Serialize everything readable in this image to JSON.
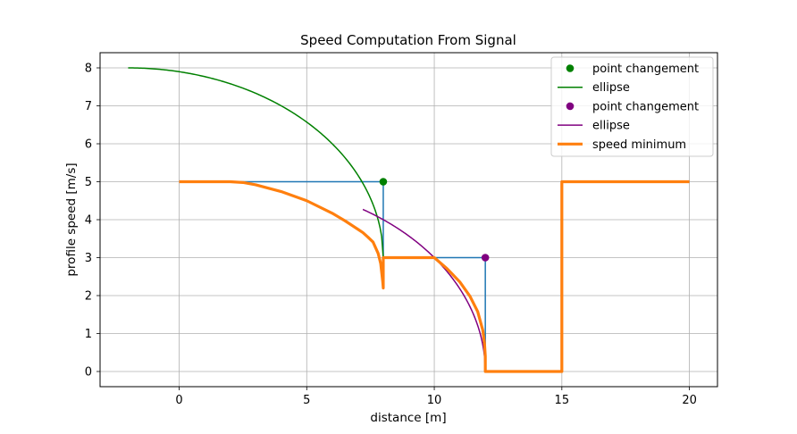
{
  "chart_data": {
    "type": "line",
    "title": "Speed Computation From Signal",
    "xlabel": "distance [m]",
    "ylabel": "profile speed [m/s]",
    "xlim": [
      -3.1,
      21.1
    ],
    "ylim": [
      -0.4,
      8.4
    ],
    "xticks": [
      0,
      5,
      10,
      15,
      20
    ],
    "yticks": [
      0,
      1,
      2,
      3,
      4,
      5,
      6,
      7,
      8
    ],
    "grid": true,
    "legend_position": "top-right",
    "colors": {
      "profile": "#1f77b4",
      "green": "#008000",
      "purple": "#800080",
      "orange": "#ff7f0e",
      "grid": "#b0b0b0"
    },
    "series": [
      {
        "key": "profile",
        "kind": "line",
        "color": "#1f77b4",
        "x": [
          0,
          8,
          8,
          12,
          12,
          15,
          15,
          20
        ],
        "y": [
          5,
          5,
          3,
          3,
          0,
          0,
          5,
          5
        ]
      },
      {
        "key": "point1",
        "kind": "point",
        "name": "point changement",
        "color": "#008000",
        "x": [
          8
        ],
        "y": [
          5
        ]
      },
      {
        "key": "ellipse1",
        "kind": "ellipse",
        "name": "ellipse",
        "color": "#008000",
        "center": [
          -2,
          3
        ],
        "semi_axes": [
          10,
          5
        ],
        "x_range": [
          -2,
          8
        ]
      },
      {
        "key": "point2",
        "kind": "point",
        "name": "point changement",
        "color": "#800080",
        "x": [
          12
        ],
        "y": [
          3
        ]
      },
      {
        "key": "ellipse2",
        "kind": "ellipse",
        "name": "ellipse",
        "color": "#800080",
        "center": [
          2,
          0
        ],
        "semi_axes": [
          10,
          5
        ],
        "x_range": [
          7.2,
          12
        ]
      },
      {
        "key": "min",
        "kind": "line",
        "name": "speed minimum",
        "color": "#ff7f0e",
        "thick": true,
        "x": [
          0,
          1,
          2,
          2.5,
          3,
          4,
          5,
          6,
          6.5,
          7,
          7.2,
          7.4,
          7.6,
          7.8,
          7.9,
          7.98,
          8,
          8,
          10,
          10.5,
          11,
          11.4,
          11.7,
          11.9,
          11.97,
          12,
          12,
          15,
          15,
          20
        ],
        "y": [
          5,
          5,
          5,
          4.98,
          4.92,
          4.74,
          4.5,
          4.17,
          3.97,
          3.75,
          3.66,
          3.54,
          3.41,
          3.11,
          2.84,
          2.36,
          2.2,
          3,
          3,
          2.71,
          2.36,
          1.98,
          1.58,
          1.09,
          0.73,
          0.4,
          0,
          0,
          5,
          5
        ]
      }
    ]
  },
  "legend": [
    {
      "label": "point changement",
      "marker": "dot",
      "color": "#008000"
    },
    {
      "label": "ellipse",
      "marker": "line",
      "color": "#008000"
    },
    {
      "label": "point changement",
      "marker": "dot",
      "color": "#800080"
    },
    {
      "label": "ellipse",
      "marker": "line",
      "color": "#800080"
    },
    {
      "label": "speed minimum",
      "marker": "thick-line",
      "color": "#ff7f0e"
    }
  ]
}
